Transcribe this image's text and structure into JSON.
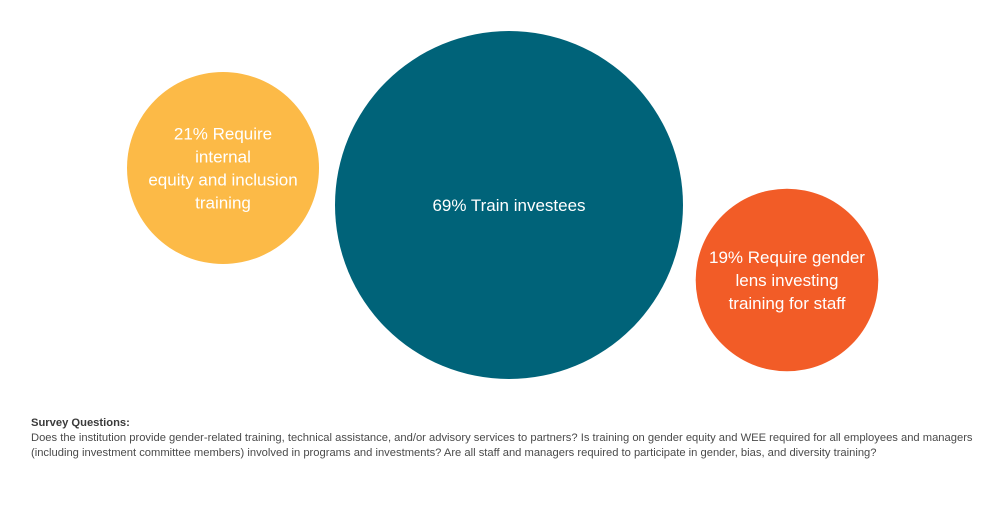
{
  "chart_data": {
    "type": "bubble",
    "title": "",
    "series": [
      {
        "label_lines": [
          "21% Require",
          "internal",
          "equity and inclusion",
          "training"
        ],
        "value": 21,
        "color": "#fcba47"
      },
      {
        "label_lines": [
          "69% Train investees"
        ],
        "value": 69,
        "color": "#006379"
      },
      {
        "label_lines": [
          "19% Require gender",
          "lens investing",
          "training for staff"
        ],
        "value": 19,
        "color": "#f25c27"
      }
    ]
  },
  "notes": {
    "heading": "Survey Questions:",
    "body": "Does the institution provide gender-related training, technical assistance, and/or advisory services to partners? Is training on gender equity and WEE required for all employees and managers (including investment committee members) involved in programs and investments? Are all staff and managers required to participate in gender, bias, and diversity training?"
  }
}
